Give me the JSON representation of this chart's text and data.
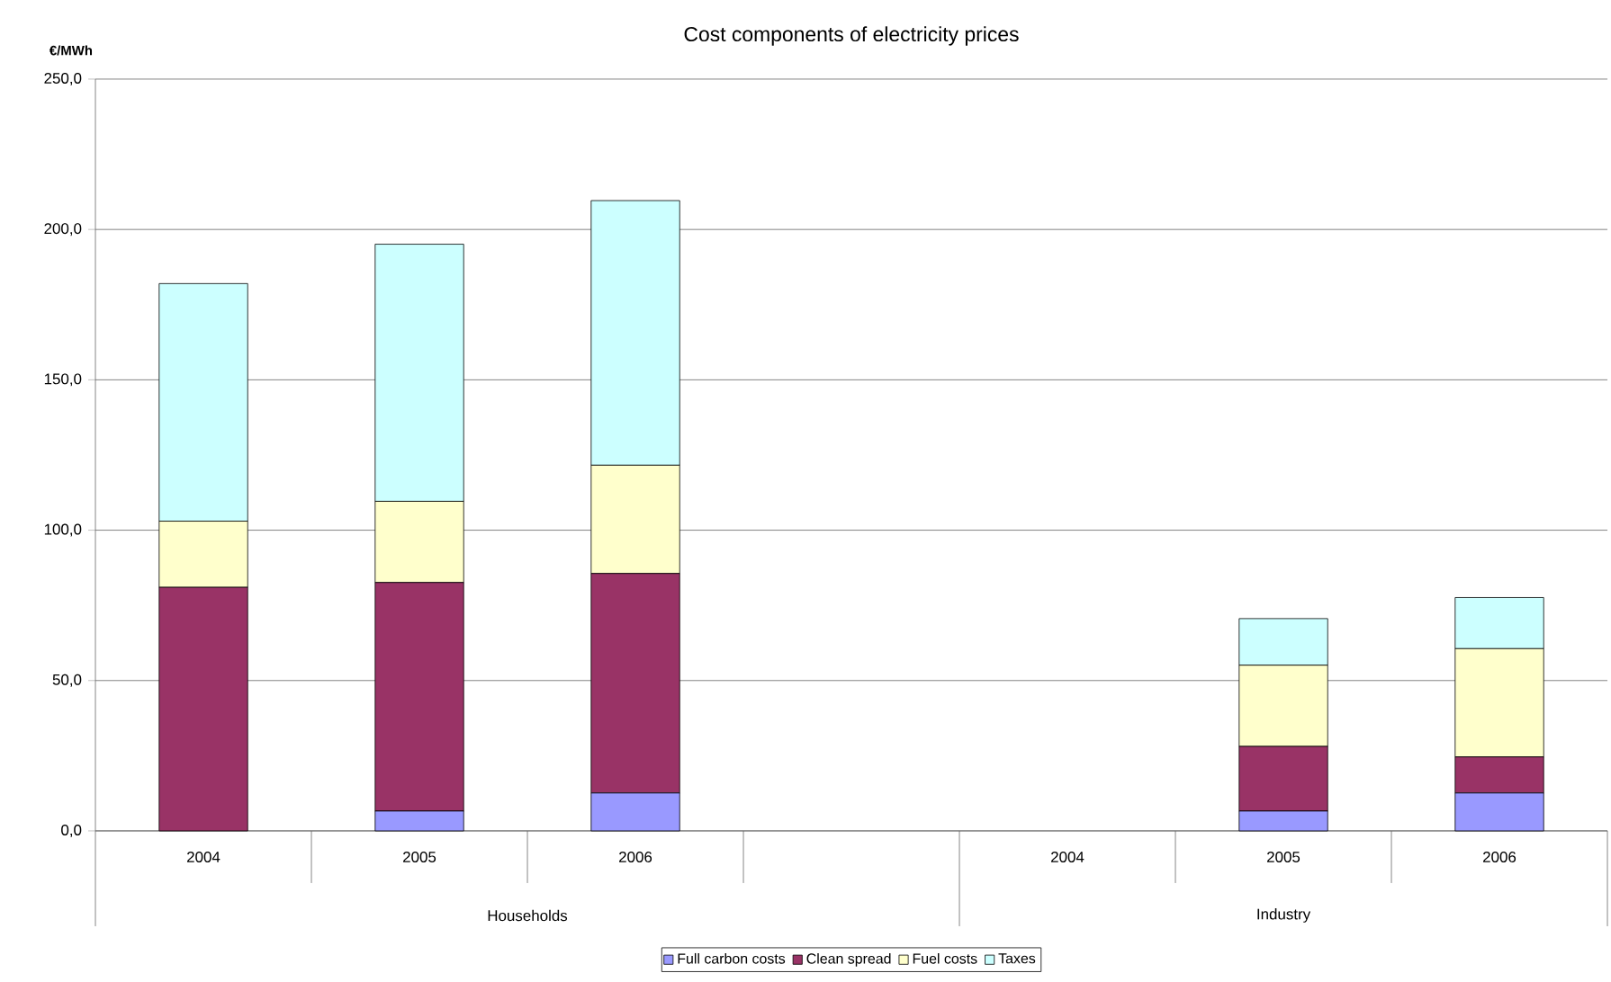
{
  "chart_data": {
    "type": "bar",
    "title": "Cost components of electricity prices",
    "ylabel": "€/MWh",
    "categories": [
      "2004",
      "2005",
      "2006",
      null,
      "2004",
      "2005",
      "2006"
    ],
    "annotations": [
      "Households",
      "Industry"
    ],
    "stacked": true,
    "series": [
      {
        "name": "Full carbon costs",
        "color": "#9999ff",
        "values": [
          0,
          6.6,
          12.6,
          null,
          null,
          6.6,
          12.6
        ]
      },
      {
        "name": "Clean spread",
        "color": "#993366",
        "values": [
          81,
          76,
          73,
          null,
          null,
          21.5,
          12
        ]
      },
      {
        "name": "Fuel costs",
        "color": "#ffffcc",
        "values": [
          22,
          27,
          36,
          null,
          null,
          27,
          36
        ]
      },
      {
        "name": "Taxes",
        "color": "#ccffff",
        "values": [
          79,
          85.5,
          88,
          null,
          null,
          15.5,
          17
        ]
      }
    ],
    "ylim": [
      0,
      250
    ],
    "yticks": [
      {
        "value": 0,
        "label": "0,0"
      },
      {
        "value": 50,
        "label": "50,0"
      },
      {
        "value": 100,
        "label": "100,0"
      },
      {
        "value": 150,
        "label": "150,0"
      },
      {
        "value": 200,
        "label": "200,0"
      },
      {
        "value": 250,
        "label": "250,0"
      }
    ],
    "grid": "y",
    "legend": "bottom"
  }
}
